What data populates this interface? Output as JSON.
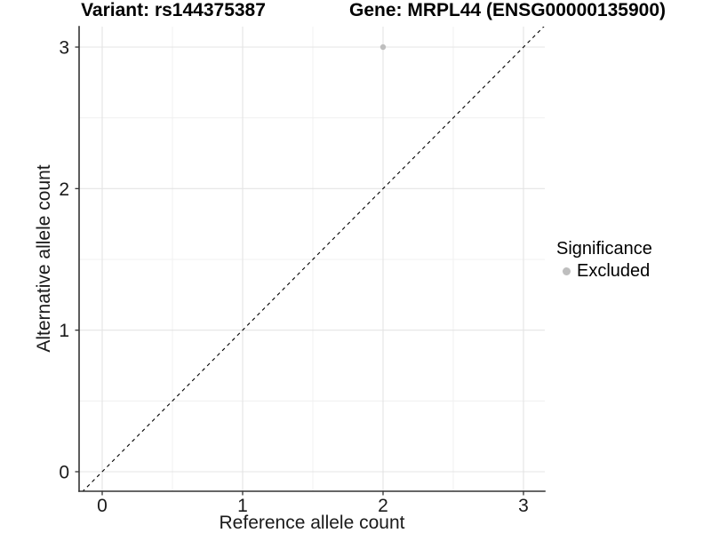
{
  "chart_data": {
    "type": "scatter",
    "titles": [
      "Variant: rs144375387",
      "Gene: MRPL44 (ENSG00000135900)"
    ],
    "xlabel": "Reference allele count",
    "ylabel": "Alternative allele count",
    "x_ticks": [
      0,
      1,
      2,
      3
    ],
    "y_ticks": [
      0,
      1,
      2,
      3
    ],
    "xlim": [
      -0.16,
      3.15
    ],
    "ylim": [
      -0.14,
      3.14
    ],
    "grid": "major and minor, light gray on white panel",
    "axis_line_color": "#333333",
    "grid_major_color": "#e4e4e4",
    "grid_minor_color": "#f0f0f0",
    "series": [
      {
        "name": "Excluded",
        "color": "#bebebe",
        "points": [
          {
            "x": 2,
            "y": 3
          }
        ]
      }
    ],
    "reference_line": {
      "kind": "y=x diagonal",
      "style": "dashed",
      "color": "#000000"
    },
    "legend": {
      "title": "Significance",
      "position": "right",
      "items": [
        {
          "label": "Excluded",
          "color": "#bebebe",
          "marker": "circle"
        }
      ]
    }
  }
}
